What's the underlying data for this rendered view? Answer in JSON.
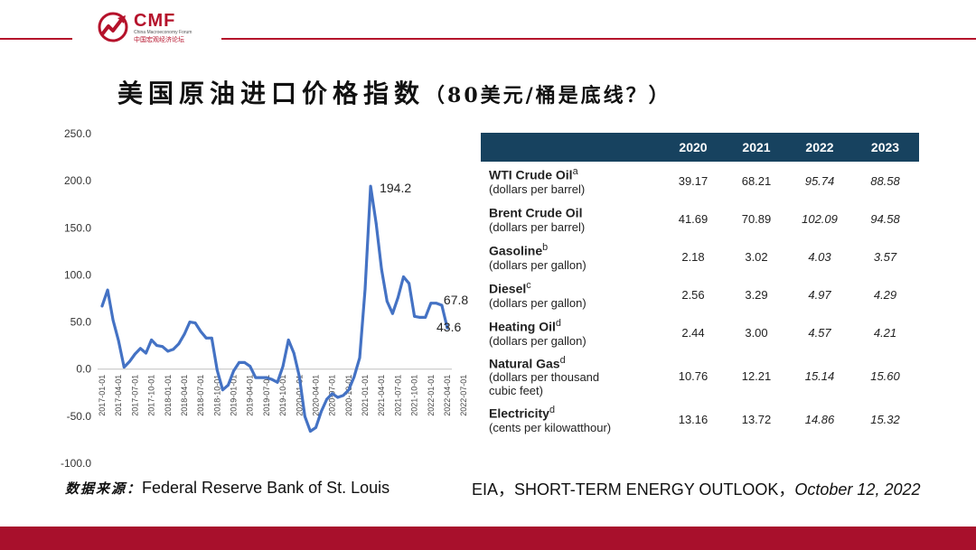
{
  "logo": {
    "name": "CMF",
    "sub_en": "China Macroeconomy Forum",
    "sub_cn": "中国宏观经济论坛"
  },
  "title": {
    "main": "美国原油进口价格指数",
    "sub": "（80美元/桶是底线？）"
  },
  "source_left": {
    "label": "数据来源：",
    "text": "Federal Reserve Bank of St. Louis"
  },
  "source_right": {
    "text": "EIA，SHORT-TERM ENERGY OUTLOOK，",
    "date": "October 12, 2022"
  },
  "colors": {
    "brand": "#b5122b",
    "line": "#4472c4",
    "table_header": "#17425f",
    "footer": "#a8102c"
  },
  "chart_data": {
    "type": "line",
    "ylim": [
      -100,
      250
    ],
    "yticks": [
      "-100.0",
      "-50.0",
      "0.0",
      "50.0",
      "100.0",
      "150.0",
      "200.0",
      "250.0"
    ],
    "xticks": [
      "2017-01-01",
      "2017-04-01",
      "2017-07-01",
      "2017-10-01",
      "2018-01-01",
      "2018-04-01",
      "2018-07-01",
      "2018-10-01",
      "2019-01-01",
      "2019-04-01",
      "2019-07-01",
      "2019-10-01",
      "2020-01-01",
      "2020-04-01",
      "2020-07-01",
      "2020-10-01",
      "2021-01-01",
      "2021-04-01",
      "2021-07-01",
      "2021-10-01",
      "2022-01-01",
      "2022-04-01",
      "2022-07-01"
    ],
    "grid": false,
    "series": [
      {
        "values": [
          67,
          84,
          52,
          30,
          2,
          8,
          16,
          22,
          17,
          31,
          25,
          24,
          19,
          21,
          27,
          37,
          50,
          49,
          40,
          33,
          33,
          -1,
          -22,
          -17,
          -2,
          7,
          7,
          3,
          -9,
          -9,
          -9,
          -11,
          -14,
          3,
          31,
          17,
          -8,
          -50,
          -66,
          -62,
          -45,
          -32,
          -26,
          -30,
          -28,
          -22,
          -8,
          12,
          85,
          194.2,
          155,
          106,
          72,
          59,
          76,
          98,
          91,
          56,
          55,
          55,
          70,
          70,
          67.8,
          43.6
        ]
      }
    ],
    "annotations": [
      "194.2",
      "67.8",
      "43.6"
    ]
  },
  "table": {
    "headers": [
      "",
      "2020",
      "2021",
      "2022",
      "2023"
    ],
    "rows": [
      {
        "name": "WTI Crude Oil",
        "sup": "a",
        "unit": "(dollars per barrel)",
        "values": [
          "39.17",
          "68.21",
          "95.74",
          "88.58"
        ]
      },
      {
        "name": "Brent Crude Oil",
        "sup": "",
        "unit": "(dollars per barrel)",
        "values": [
          "41.69",
          "70.89",
          "102.09",
          "94.58"
        ]
      },
      {
        "name": "Gasoline",
        "sup": "b",
        "unit": "(dollars per gallon)",
        "values": [
          "2.18",
          "3.02",
          "4.03",
          "3.57"
        ]
      },
      {
        "name": "Diesel",
        "sup": "c",
        "unit": "(dollars per gallon)",
        "values": [
          "2.56",
          "3.29",
          "4.97",
          "4.29"
        ]
      },
      {
        "name": "Heating Oil",
        "sup": "d",
        "unit": "(dollars per gallon)",
        "values": [
          "2.44",
          "3.00",
          "4.57",
          "4.21"
        ]
      },
      {
        "name": "Natural Gas",
        "sup": "d",
        "unit": "(dollars per thousand",
        "unit2": "cubic feet)",
        "values": [
          "10.76",
          "12.21",
          "15.14",
          "15.60"
        ]
      },
      {
        "name": "Electricity",
        "sup": "d",
        "unit": "(cents per kilowatthour)",
        "values": [
          "13.16",
          "13.72",
          "14.86",
          "15.32"
        ]
      }
    ]
  }
}
